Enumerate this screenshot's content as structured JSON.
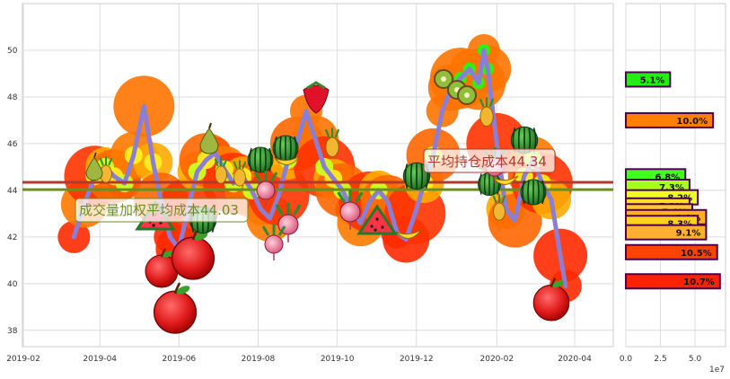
{
  "chart_data": [
    {
      "type": "line",
      "title": "",
      "xlabel": "",
      "ylabel": "",
      "ylim": [
        37.3,
        52.0
      ],
      "x_ticks": [
        "2019-02",
        "2019-04",
        "2019-06",
        "2019-08",
        "2019-10",
        "2019-12",
        "2020-02",
        "2020-04"
      ],
      "y_ticks": [
        38,
        40,
        42,
        44,
        46,
        48,
        50
      ],
      "grid": true,
      "series": [
        {
          "x": [
            "2019-03-12",
            "2019-03-20",
            "2019-03-28",
            "2019-04-05",
            "2019-04-12",
            "2019-04-20",
            "2019-04-27",
            "2019-05-05",
            "2019-05-12",
            "2019-05-18",
            "2019-05-25",
            "2019-06-01",
            "2019-06-08",
            "2019-06-15",
            "2019-06-22",
            "2019-06-29",
            "2019-07-06",
            "2019-07-13",
            "2019-07-20",
            "2019-07-27",
            "2019-08-03",
            "2019-08-10",
            "2019-08-17",
            "2019-08-24",
            "2019-08-31",
            "2019-09-07",
            "2019-09-14",
            "2019-09-21",
            "2019-09-28",
            "2019-10-05",
            "2019-10-12",
            "2019-10-19",
            "2019-10-26",
            "2019-11-02",
            "2019-11-09",
            "2019-11-16",
            "2019-11-23",
            "2019-11-30",
            "2019-12-07",
            "2019-12-14",
            "2019-12-21",
            "2019-12-28",
            "2020-01-04",
            "2020-01-11",
            "2020-01-18",
            "2020-01-22",
            "2020-01-25",
            "2020-02-01",
            "2020-02-08",
            "2020-02-15",
            "2020-02-22",
            "2020-02-29",
            "2020-03-07",
            "2020-03-14",
            "2020-03-21",
            "2020-03-25"
          ],
          "values": [
            42.0,
            43.4,
            44.6,
            45.0,
            44.6,
            44.3,
            45.5,
            47.6,
            45.2,
            43.6,
            42.0,
            41.5,
            43.2,
            44.8,
            45.3,
            45.6,
            44.9,
            44.3,
            44.6,
            44.0,
            43.2,
            42.8,
            43.8,
            45.3,
            46.0,
            47.4,
            46.2,
            45.0,
            44.5,
            44.0,
            43.2,
            42.6,
            43.5,
            44.0,
            43.5,
            42.2,
            41.9,
            43.0,
            44.3,
            45.5,
            47.4,
            48.4,
            48.8,
            49.2,
            48.6,
            50.0,
            49.2,
            46.0,
            43.2,
            42.7,
            44.6,
            45.3,
            44.3,
            43.6,
            41.2,
            39.9
          ]
        }
      ],
      "reference_lines": [
        {
          "label": "平均持仓成本44.34",
          "value": 44.34,
          "color": "#b03a2e"
        },
        {
          "label": "成交量加权平均成本44.03",
          "value": 44.03,
          "color": "#6b8e23"
        }
      ],
      "annotations": [
        {
          "text": "成交量加权平均成本44.03",
          "color": "#6b8e23"
        },
        {
          "text": "平均持仓成本44.34",
          "color": "#b03a2e"
        }
      ],
      "line_color": "#8a7fd4"
    },
    {
      "type": "bar",
      "orientation": "horizontal",
      "xlabel": "",
      "x_ticks": [
        "0.0",
        "2.5",
        "5.0"
      ],
      "x_exponent": "1e7",
      "xlim": [
        0,
        72000000.0
      ],
      "bars": [
        {
          "price": 48.75,
          "value": 32000000.0,
          "label": "5.1%",
          "color": "#22ee11"
        },
        {
          "price": 47.0,
          "value": 63000000.0,
          "label": "10.0%",
          "color": "#ff8000"
        },
        {
          "price": 44.6,
          "value": 43000000.0,
          "label": "6.8%",
          "color": "#44ff22"
        },
        {
          "price": 44.15,
          "value": 46000000.0,
          "label": "7.3%",
          "color": "#a8ff20"
        },
        {
          "price": 43.7,
          "value": 52000000.0,
          "label": "8.2%",
          "color": "#eeff22"
        },
        {
          "price": 43.35,
          "value": 46000000.0,
          "label": "7.2%",
          "color": "#ffdd22"
        },
        {
          "price": 43.1,
          "value": 48000000.0,
          "label": "7.6%",
          "color": "#ffc830"
        },
        {
          "price": 42.85,
          "value": 58000000.0,
          "label": "9.1%",
          "color": "#ffb020"
        },
        {
          "price": 42.6,
          "value": 52000000.0,
          "label": "8.3%",
          "color": "#ffd020"
        },
        {
          "price": 42.2,
          "value": 58000000.0,
          "label": "9.1%",
          "color": "#ffb030"
        },
        {
          "price": 41.35,
          "value": 66000000.0,
          "label": "10.5%",
          "color": "#ff4400"
        },
        {
          "price": 40.1,
          "value": 68000000.0,
          "label": "10.7%",
          "color": "#ff2200"
        }
      ]
    }
  ]
}
